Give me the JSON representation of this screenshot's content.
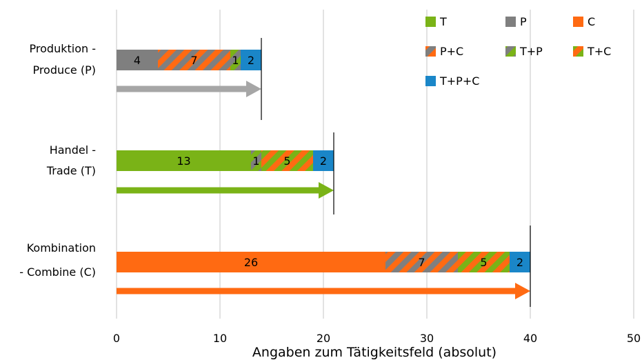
{
  "chart_data": {
    "type": "bar",
    "orientation": "horizontal",
    "stacked": true,
    "xlabel": "Angaben zum Tätigkeitsfeld (absolut)",
    "xlim": [
      0,
      50
    ],
    "xticks": [
      0,
      10,
      20,
      30,
      40,
      50
    ],
    "grid": true,
    "legend_position": "top-right",
    "colors": {
      "T": "#7ab317",
      "P": "#7f7f7f",
      "C": "#ff6a12",
      "P+C": [
        "#ff6a12",
        "#7f7f7f"
      ],
      "T+P": [
        "#7ab317",
        "#7f7f7f"
      ],
      "T+C": [
        "#ff6a12",
        "#7ab317"
      ],
      "T+P+C": "#1a86c8"
    },
    "legend": [
      "T",
      "P",
      "C",
      "P+C",
      "T+P",
      "T+C",
      "T+P+C"
    ],
    "categories": [
      {
        "label_lines": [
          "Produktion -",
          "Produce (P)"
        ],
        "total": 14,
        "arrow_color": "#a6a6a6",
        "segments": [
          {
            "type": "P",
            "value": 4,
            "label": "4"
          },
          {
            "type": "P+C",
            "value": 7,
            "label": "7"
          },
          {
            "type": "T+P",
            "value": 1,
            "label": "1"
          },
          {
            "type": "T+P+C",
            "value": 2,
            "label": "2"
          }
        ]
      },
      {
        "label_lines": [
          "Handel -",
          "Trade (T)"
        ],
        "total": 21,
        "arrow_color": "#7ab317",
        "segments": [
          {
            "type": "T",
            "value": 13,
            "label": "13"
          },
          {
            "type": "T+P",
            "value": 1,
            "label": "1"
          },
          {
            "type": "T+C",
            "value": 5,
            "label": "5"
          },
          {
            "type": "T+P+C",
            "value": 2,
            "label": "2"
          }
        ]
      },
      {
        "label_lines": [
          "Kombination",
          "- Combine (C)"
        ],
        "total": 40,
        "arrow_color": "#ff6a12",
        "segments": [
          {
            "type": "C",
            "value": 26,
            "label": "26"
          },
          {
            "type": "P+C",
            "value": 7,
            "label": "7"
          },
          {
            "type": "T+C",
            "value": 5,
            "label": "5"
          },
          {
            "type": "T+P+C",
            "value": 2,
            "label": "2"
          }
        ]
      }
    ]
  }
}
